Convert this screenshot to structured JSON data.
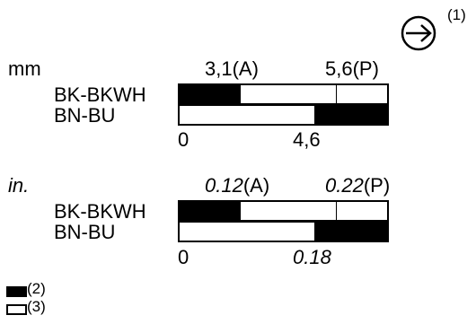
{
  "direction_marker": {
    "label": "(1)",
    "icon": "arrow-right-circle-icon"
  },
  "metric": {
    "unit": "mm",
    "point_a_label": "3,1(A)",
    "point_p_label": "5,6(P)",
    "rows": [
      {
        "label": "BK-BKWH",
        "black_from": 0,
        "black_to": 0.3,
        "divider_at": 0.75
      },
      {
        "label": "BN-BU",
        "black_from": 0.64,
        "black_to": 1.0
      }
    ],
    "scale_start": "0",
    "scale_mark": "4,6"
  },
  "imperial": {
    "unit": "in.",
    "point_a_value": "0.12",
    "point_a_suffix": "(A)",
    "point_p_value": "0.22",
    "point_p_suffix": "(P)",
    "rows": [
      {
        "label": "BK-BKWH",
        "black_from": 0,
        "black_to": 0.3,
        "divider_at": 0.75
      },
      {
        "label": "BN-BU",
        "black_from": 0.64,
        "black_to": 1.0
      }
    ],
    "scale_start": "0",
    "scale_mark": "0.18"
  },
  "legend": [
    {
      "label": "(2)",
      "swatch": "#000000"
    },
    {
      "label": "(3)",
      "swatch": "#ffffff"
    }
  ]
}
